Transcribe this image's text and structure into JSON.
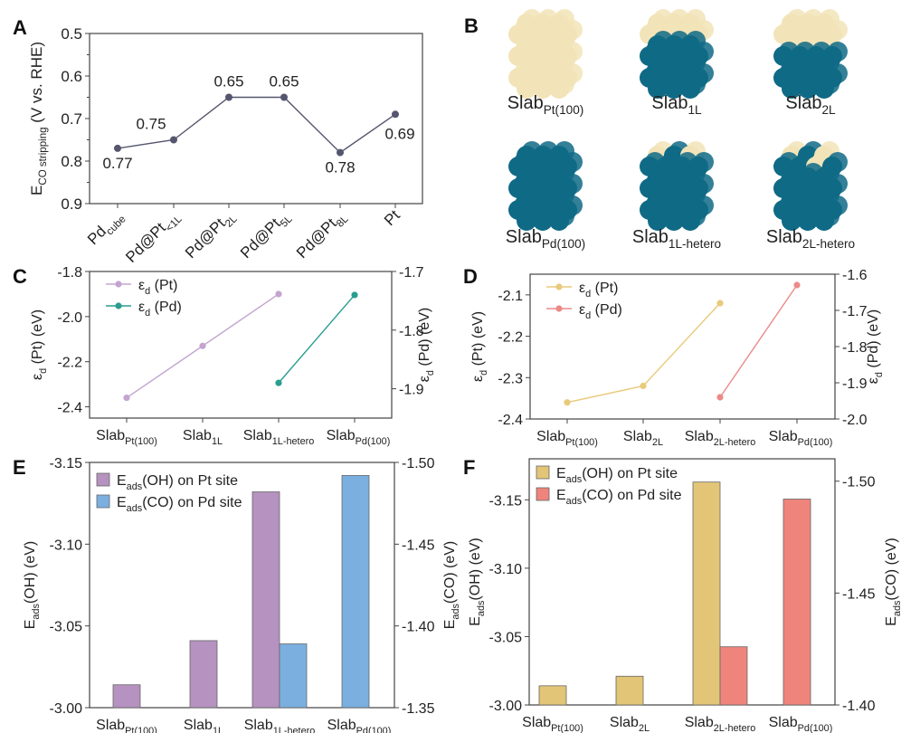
{
  "panels": {
    "A": {
      "letter": "A",
      "chart_data": {
        "type": "line",
        "categories": [
          {
            "t": "Pd",
            "s": "cube"
          },
          {
            "t": "Pd@Pt",
            "s": "<1L"
          },
          {
            "t": "Pd@Pt",
            "s": "2L"
          },
          {
            "t": "Pd@Pt",
            "s": "5L"
          },
          {
            "t": "Pd@Pt",
            "s": "8L"
          },
          {
            "t": "Pt",
            "s": ""
          }
        ],
        "values": [
          0.77,
          0.75,
          0.65,
          0.65,
          0.78,
          0.69
        ],
        "data_labels": [
          "0.77",
          "0.75",
          "0.65",
          "0.65",
          "0.78",
          "0.69"
        ],
        "label_pos": [
          "below",
          "above",
          "above",
          "above",
          "below",
          "below-right"
        ],
        "ylabel": {
          "t": "E",
          "s": "CO stripping",
          "a": " (V vs. RHE)"
        },
        "ylim": [
          0.5,
          0.9
        ],
        "y_inverted": true,
        "yticks": [
          "0.5",
          "0.6",
          "0.7",
          "0.8",
          "0.9"
        ],
        "color": "#55566e"
      }
    },
    "B": {
      "letter": "B",
      "structures": [
        {
          "label": {
            "t": "Slab",
            "s": "Pt(100)"
          },
          "kind": "pt"
        },
        {
          "label": {
            "t": "Slab",
            "s": "1L"
          },
          "kind": "1L"
        },
        {
          "label": {
            "t": "Slab",
            "s": "2L"
          },
          "kind": "2L"
        },
        {
          "label": {
            "t": "Slab",
            "s": "Pd(100)"
          },
          "kind": "pd"
        },
        {
          "label": {
            "t": "Slab",
            "s": "1L-hetero"
          },
          "kind": "1Lh"
        },
        {
          "label": {
            "t": "Slab",
            "s": "2L-hetero"
          },
          "kind": "2Lh"
        }
      ],
      "colors": {
        "pt": "#f2e4b8",
        "pd": "#0f6a86"
      }
    },
    "C": {
      "letter": "C",
      "chart_data": {
        "type": "line",
        "categories": [
          {
            "t": "Slab",
            "s": "Pt(100)"
          },
          {
            "t": "Slab",
            "s": "1L"
          },
          {
            "t": "Slab",
            "s": "1L-hetero"
          },
          {
            "t": "Slab",
            "s": "Pd(100)"
          }
        ],
        "series": [
          {
            "name": {
              "t": "ε",
              "s": "d",
              "a": " (Pt)"
            },
            "axis": "left",
            "x": [
              0,
              1,
              2
            ],
            "values": [
              -2.36,
              -2.13,
              -1.9
            ],
            "color": "#c3a5cf"
          },
          {
            "name": {
              "t": "ε",
              "s": "d",
              "a": " (Pd)"
            },
            "axis": "right",
            "x": [
              2,
              3
            ],
            "values": [
              -1.89,
              -1.74
            ],
            "color": "#2a9d8f"
          }
        ],
        "ylabel_left": {
          "t": "ε",
          "s": "d",
          "a": " (Pt) (eV)"
        },
        "ylabel_right": {
          "t": "ε",
          "s": "d",
          "a": " (Pd) (eV)"
        },
        "ylim_left": [
          -1.8,
          -2.45
        ],
        "ylim_right": [
          -1.7,
          -1.95
        ],
        "yticks_left": [
          "-1.8",
          "-2.0",
          "-2.2",
          "-2.4"
        ],
        "yticks_right": [
          "-1.7",
          "-1.8",
          "-1.9"
        ],
        "legend": "top-left"
      }
    },
    "D": {
      "letter": "D",
      "chart_data": {
        "type": "line",
        "categories": [
          {
            "t": "Slab",
            "s": "Pt(100)"
          },
          {
            "t": "Slab",
            "s": "2L"
          },
          {
            "t": "Slab",
            "s": "2L-hetero"
          },
          {
            "t": "Slab",
            "s": "Pd(100)"
          }
        ],
        "series": [
          {
            "name": {
              "t": "ε",
              "s": "d",
              "a": " (Pt)"
            },
            "axis": "left",
            "x": [
              0,
              1,
              2
            ],
            "values": [
              -2.36,
              -2.32,
              -2.12
            ],
            "color": "#e9ca7c"
          },
          {
            "name": {
              "t": "ε",
              "s": "d",
              "a": " (Pd)"
            },
            "axis": "right",
            "x": [
              2,
              3
            ],
            "values": [
              -1.94,
              -1.63
            ],
            "color": "#ec8a88"
          }
        ],
        "ylabel_left": {
          "t": "ε",
          "s": "d",
          "a": " (Pt) (eV)"
        },
        "ylabel_right": {
          "t": "ε",
          "s": "d",
          "a": " (Pd) (eV)"
        },
        "ylim_left": [
          -2.05,
          -2.4
        ],
        "ylim_right": [
          -1.6,
          -2.0
        ],
        "yticks_left": [
          "-2.1",
          "-2.2",
          "-2.3",
          "-2.4"
        ],
        "yticks_right": [
          "-1.6",
          "-1.7",
          "-1.8",
          "-1.9",
          "-2.0"
        ],
        "legend": "top-left"
      }
    },
    "E": {
      "letter": "E",
      "chart_data": {
        "type": "bar",
        "categories": [
          {
            "t": "Slab",
            "s": "Pt(100)"
          },
          {
            "t": "Slab",
            "s": "1L"
          },
          {
            "t": "Slab",
            "s": "1L-hetero"
          },
          {
            "t": "Slab",
            "s": "Pd(100)"
          }
        ],
        "series": [
          {
            "name": {
              "t": "E",
              "s": "ads",
              "a": "(OH) on Pt site"
            },
            "axis": "left",
            "x": [
              0,
              1,
              2
            ],
            "values": [
              -3.014,
              -3.041,
              -3.132
            ],
            "color": "#b592c0"
          },
          {
            "name": {
              "t": "E",
              "s": "ads",
              "a": "(CO) on Pd site"
            },
            "axis": "right",
            "x": [
              2,
              3
            ],
            "values": [
              -1.389,
              -1.492
            ],
            "color": "#7aafe0"
          }
        ],
        "ylabel_left": {
          "t": "E",
          "s": "ads",
          "a": "(OH) (eV)"
        },
        "ylabel_right": {
          "t": "E",
          "s": "ads",
          "a": "(CO) (eV)"
        },
        "ylim_left": [
          -3.15,
          -3.0
        ],
        "ylim_right": [
          -1.5,
          -1.35
        ],
        "yticks_left": [
          "-3.15",
          "-3.10",
          "-3.05",
          "-3.00"
        ],
        "yticks_right": [
          "-1.50",
          "-1.45",
          "-1.40",
          "-1.35"
        ],
        "legend": "top-left"
      }
    },
    "F": {
      "letter": "F",
      "chart_data": {
        "type": "bar",
        "categories": [
          {
            "t": "Slab",
            "s": "Pt(100)"
          },
          {
            "t": "Slab",
            "s": "2L"
          },
          {
            "t": "Slab",
            "s": "2L-hetero"
          },
          {
            "t": "Slab",
            "s": "Pd(100)"
          }
        ],
        "series": [
          {
            "name": {
              "t": "E",
              "s": "ads",
              "a": "(OH) on Pt site"
            },
            "axis": "left",
            "x": [
              0,
              1,
              2
            ],
            "values": [
              -3.014,
              -3.021,
              -3.163
            ],
            "color": "#e2c577"
          },
          {
            "name": {
              "t": "E",
              "s": "ads",
              "a": "(CO) on Pd site"
            },
            "axis": "right",
            "x": [
              2,
              3
            ],
            "values": [
              -1.426,
              -1.492
            ],
            "color": "#ef847c"
          }
        ],
        "ylabel_left": {
          "t": "E",
          "s": "ads",
          "a": "(OH) (eV)"
        },
        "ylabel_right": {
          "t": "E",
          "s": "ads",
          "a": "(CO) (eV)"
        },
        "ylim_left": [
          -3.18,
          -3.0
        ],
        "ylim_right": [
          -1.51,
          -1.4
        ],
        "yticks_left": [
          "-3.15",
          "-3.10",
          "-3.05",
          "-3.00"
        ],
        "yticks_right": [
          "-1.50",
          "-1.45",
          "-1.40"
        ],
        "legend": "top-left"
      }
    }
  }
}
